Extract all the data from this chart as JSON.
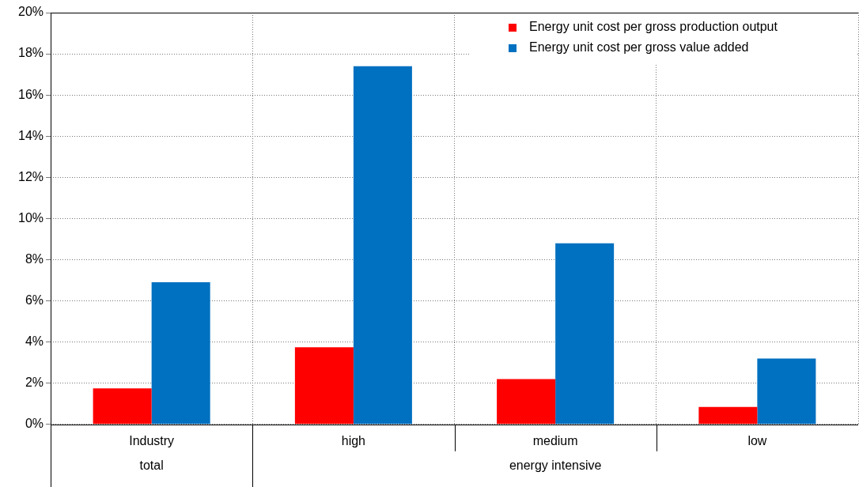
{
  "chart_data": {
    "type": "bar",
    "categories": [
      "Industry",
      "high",
      "medium",
      "low"
    ],
    "series": [
      {
        "name": "Energy unit cost per gross production output",
        "color": "#ff0000",
        "values": [
          1.75,
          3.75,
          2.2,
          0.85
        ]
      },
      {
        "name": "Energy unit cost per gross value added",
        "color": "#0070c0",
        "values": [
          6.9,
          17.4,
          8.8,
          3.2
        ]
      }
    ],
    "ylim": [
      0,
      20
    ],
    "yticks": [
      {
        "value": 0,
        "label": "0%"
      },
      {
        "value": 2,
        "label": "2%"
      },
      {
        "value": 4,
        "label": "4%"
      },
      {
        "value": 6,
        "label": "6%"
      },
      {
        "value": 8,
        "label": "8%"
      },
      {
        "value": 10,
        "label": "10%"
      },
      {
        "value": 12,
        "label": "12%"
      },
      {
        "value": 14,
        "label": "14%"
      },
      {
        "value": 16,
        "label": "16%"
      },
      {
        "value": 18,
        "label": "18%"
      },
      {
        "value": 20,
        "label": "20%"
      }
    ],
    "annotations": [
      "total",
      "energy intensive"
    ],
    "grid": true,
    "legend": "top right"
  }
}
